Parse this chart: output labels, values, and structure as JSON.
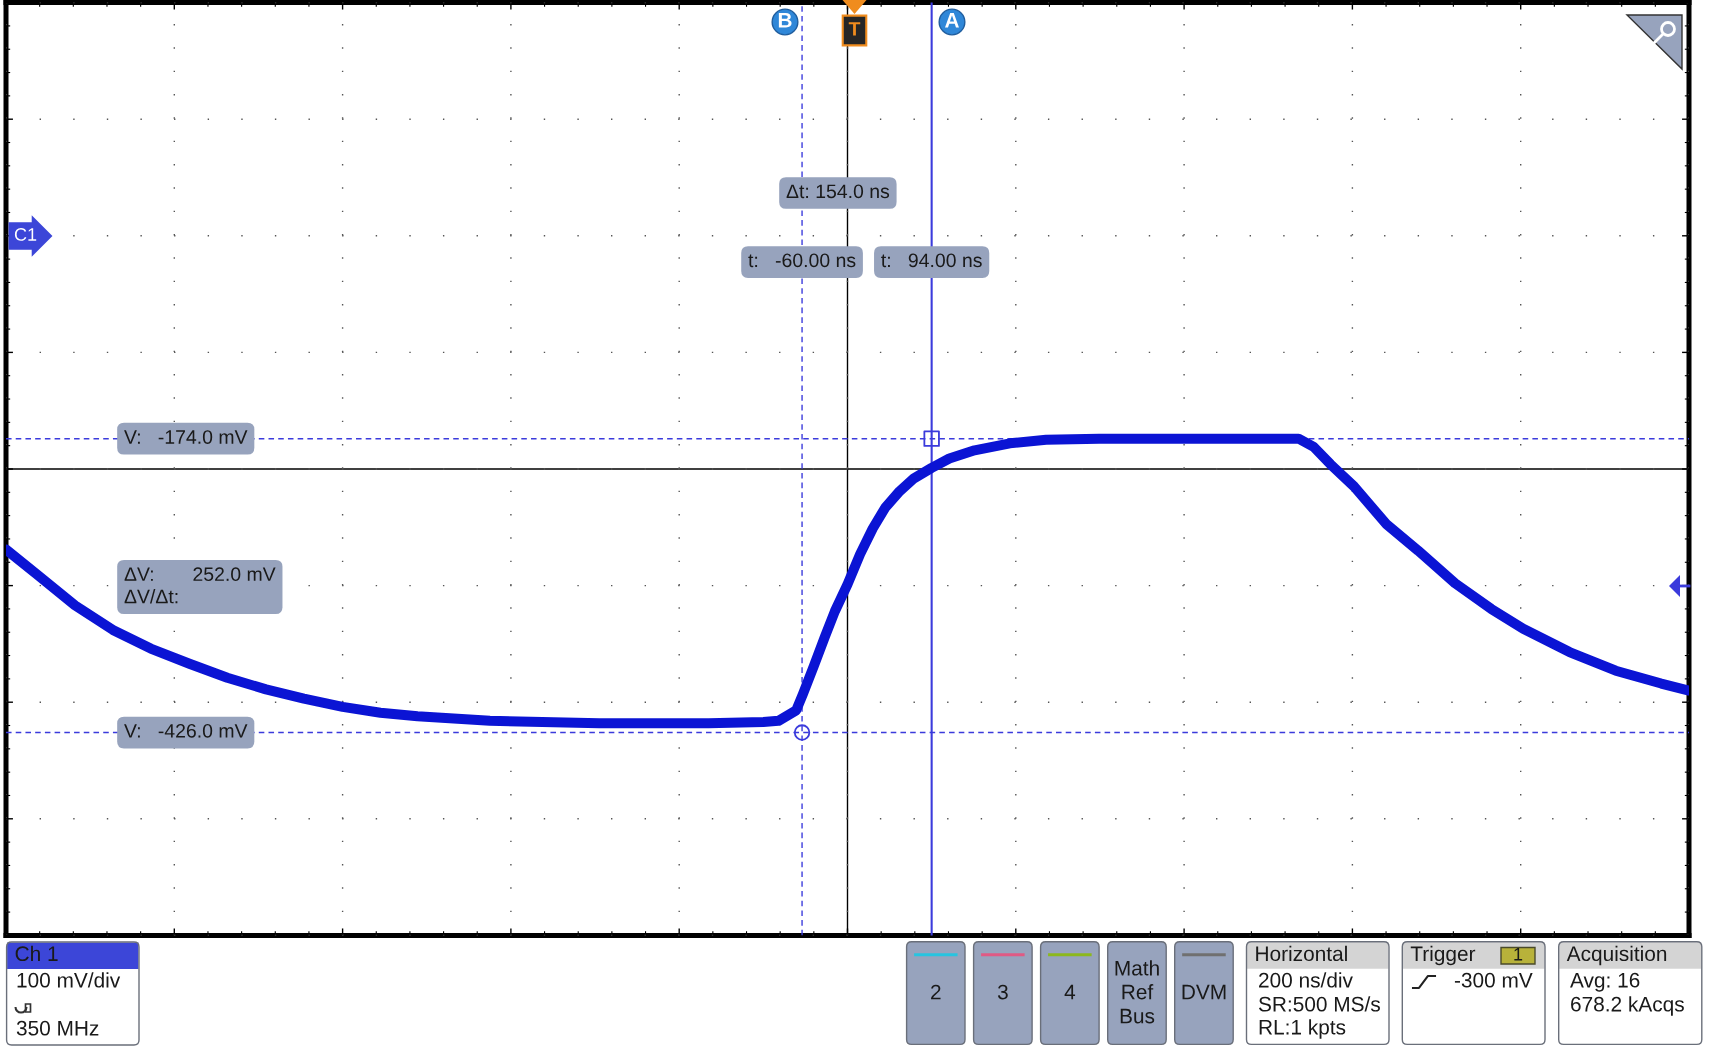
{
  "chart_data": {
    "type": "line",
    "xlim": [
      -1006,
      994
    ],
    "ylim": [
      -600,
      200
    ],
    "xticks": [
      {
        "value": -1006,
        "label": null
      },
      {
        "value": -806,
        "label": null
      },
      {
        "value": -606,
        "label": null
      },
      {
        "value": -406,
        "label": null
      },
      {
        "value": -206,
        "label": null
      },
      {
        "value": -60,
        "label": "t:   -60.00 ns"
      },
      {
        "value": -6,
        "label": null
      },
      {
        "value": 94,
        "label": "t:   94.00 ns"
      },
      {
        "value": 194,
        "label": null
      },
      {
        "value": 394,
        "label": null
      },
      {
        "value": 594,
        "label": null
      },
      {
        "value": 794,
        "label": null
      },
      {
        "value": 994,
        "label": null
      }
    ],
    "yticks": [
      {
        "value": -600,
        "label": null
      },
      {
        "value": -500,
        "label": null
      },
      {
        "value": -426,
        "label": "V:   -426.0 mV"
      },
      {
        "value": -400,
        "label": null
      },
      {
        "value": -300,
        "label": null
      },
      {
        "value": -200,
        "label": null
      },
      {
        "value": -174,
        "label": "V:   -174.0 mV"
      },
      {
        "value": -100,
        "label": null
      },
      {
        "value": 0,
        "label": null
      },
      {
        "value": 100,
        "label": null
      },
      {
        "value": 200,
        "label": null
      }
    ],
    "grid": true,
    "series": [
      {
        "type": "line",
        "color": "#0b14d4",
        "x": [
          -1006,
          -970,
          -924,
          -879,
          -834,
          -788,
          -743,
          -697,
          -652,
          -606,
          -561,
          -517,
          -431,
          -301,
          -171,
          -106,
          -88,
          -67,
          -59,
          -46,
          -33,
          -21,
          -6,
          9,
          24,
          39,
          56,
          73,
          94,
          115,
          145,
          187,
          230,
          293,
          421,
          530,
          548,
          568,
          596,
          634,
          672,
          716,
          759,
          797,
          852,
          907,
          961,
          994
        ],
        "values": [
          -269,
          -290,
          -317,
          -338,
          -354,
          -367,
          -379,
          -389,
          -397,
          -404,
          -409,
          -412,
          -416,
          -418,
          -418,
          -417,
          -416,
          -407,
          -393,
          -369,
          -344,
          -322,
          -299,
          -273,
          -251,
          -233,
          -219,
          -208,
          -199,
          -191,
          -184,
          -178,
          -175,
          -174,
          -174,
          -174,
          -181,
          -196,
          -215,
          -247,
          -270,
          -298,
          -320,
          -337,
          -357,
          -373,
          -384,
          -390
        ]
      },
      {
        "type": "line",
        "color": "#3b3bdc",
        "line_style": "solid",
        "x": [
          94,
          94
        ],
        "values": [
          -600,
          200
        ]
      },
      {
        "type": "scatter",
        "marker": "square",
        "color": "#3b3bdc",
        "x": [
          94
        ],
        "values": [
          -174
        ]
      },
      {
        "type": "scatter",
        "marker": "circle",
        "color": "#3b3bdc",
        "x": [
          -60
        ],
        "values": [
          -426
        ]
      }
    ],
    "annotations": [
      "Δt: 154.0 ns",
      "ΔV:       252.0 mV\nΔV/Δt:",
      "C1",
      "T",
      "B",
      "A",
      "Ch 1",
      "100 mV/div",
      "350 MHz",
      "2",
      "3",
      "4",
      "Math",
      "Ref",
      "Bus",
      "DVM",
      "Horizontal",
      "200 ns/div",
      "SR:500 MS/s",
      "RL:1 kpts",
      "Trigger",
      "1",
      "-300 mV",
      "Acquisition",
      "Avg: 16",
      "678.2 kAcqs"
    ]
  }
}
